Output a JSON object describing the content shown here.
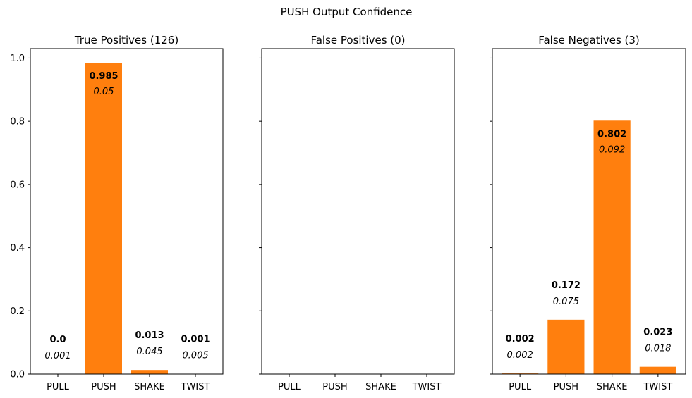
{
  "chart_data": {
    "type": "bar",
    "title": "PUSH Output Confidence",
    "color": "#ff7f0e",
    "ylim": [
      0,
      1.03
    ],
    "yticks": [
      "0.0",
      "0.2",
      "0.4",
      "0.6",
      "0.8",
      "1.0"
    ],
    "ytick_values": [
      0,
      0.2,
      0.4,
      0.6,
      0.8,
      1.0
    ],
    "categories": [
      "PULL",
      "PUSH",
      "SHAKE",
      "TWIST"
    ],
    "grid": false,
    "panels": [
      {
        "title": "True Positives (126)",
        "values": [
          0.0,
          0.985,
          0.013,
          0.001
        ],
        "value_labels": [
          "0.0",
          "0.985",
          "0.013",
          "0.001"
        ],
        "std_labels": [
          "0.001",
          "0.05",
          "0.045",
          "0.005"
        ]
      },
      {
        "title": "False Positives (0)",
        "values": [],
        "value_labels": [],
        "std_labels": []
      },
      {
        "title": "False Negatives (3)",
        "values": [
          0.002,
          0.172,
          0.802,
          0.023
        ],
        "value_labels": [
          "0.002",
          "0.172",
          "0.802",
          "0.023"
        ],
        "std_labels": [
          "0.002",
          "0.075",
          "0.092",
          "0.018"
        ]
      }
    ]
  }
}
